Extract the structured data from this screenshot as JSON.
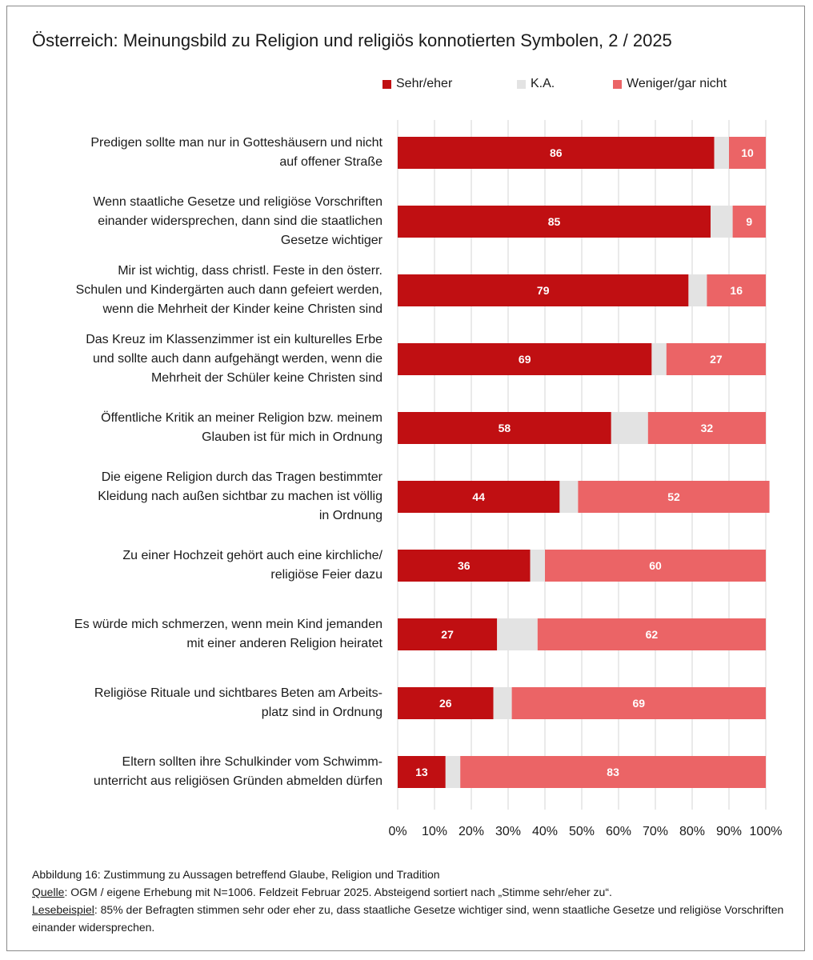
{
  "title": "Österreich: Meinungsbild zu Religion und religiös konnotierten Symbolen, 2 / 2025",
  "colors": {
    "sehr": "#c00f12",
    "ka": "#e3e3e3",
    "weniger": "#eb6466",
    "grid": "#d6d6d6"
  },
  "chart_data": {
    "type": "bar",
    "orientation": "horizontal",
    "stacked": true,
    "xlim": [
      0,
      100
    ],
    "xticks": [
      "0%",
      "10%",
      "20%",
      "30%",
      "40%",
      "50%",
      "60%",
      "70%",
      "80%",
      "90%",
      "100%"
    ],
    "grid": true,
    "legend_position": "top",
    "categories": [
      "Predigen sollte man nur in Gotteshäusern und nicht auf offener Straße",
      "Wenn staatliche Gesetze und religiöse Vorschriften einander widersprechen, dann sind die staatlichen Gesetze wichtiger",
      "Mir ist wichtig, dass christl. Feste in den österr. Schulen und Kindergärten auch dann gefeiert werden, wenn die Mehrheit der Kinder keine Christen sind",
      "Das Kreuz im Klassenzimmer ist ein kulturelles Erbe und sollte auch dann aufgehängt werden, wenn die Mehrheit der Schüler keine Christen sind",
      "Öffentliche Kritik an meiner Religion bzw. meinem Glauben ist für mich in Ordnung",
      "Die eigene Religion durch das Tragen bestimmter Kleidung nach außen sichtbar zu machen ist völlig in Ordnung",
      "Zu einer Hochzeit gehört auch eine kirchliche/ religiöse Feier dazu",
      "Es würde mich schmerzen, wenn mein Kind jemanden mit einer anderen Religion heiratet",
      "Religiöse Rituale und sichtbares Beten am Arbeitsplatz sind in Ordnung",
      "Eltern sollten ihre Schulkinder vom Schwimmunterricht aus religiösen Gründen abmelden dürfen"
    ],
    "category_lines": [
      [
        "Predigen sollte man nur in Gotteshäusern und nicht",
        "auf offener Straße"
      ],
      [
        "Wenn staatliche Gesetze und religiöse Vorschriften",
        "einander widersprechen, dann sind die staatlichen",
        "Gesetze wichtiger"
      ],
      [
        "Mir ist wichtig, dass christl. Feste in den österr.",
        "Schulen und Kindergärten auch dann gefeiert werden,",
        "wenn die Mehrheit der Kinder keine Christen sind"
      ],
      [
        "Das Kreuz im Klassenzimmer ist ein kulturelles Erbe",
        "und sollte auch dann aufgehängt werden, wenn die",
        "Mehrheit der Schüler keine Christen sind"
      ],
      [
        "Öffentliche Kritik an meiner Religion bzw. meinem",
        "Glauben ist für mich in Ordnung"
      ],
      [
        "Die eigene Religion durch das Tragen bestimmter",
        "Kleidung nach außen sichtbar zu machen ist völlig",
        "in Ordnung"
      ],
      [
        "Zu einer Hochzeit gehört auch eine kirchliche/",
        "religiöse Feier dazu"
      ],
      [
        "Es würde mich schmerzen, wenn mein Kind jemanden",
        "mit einer anderen Religion heiratet"
      ],
      [
        "Religiöse Rituale und sichtbares Beten am Arbeits-",
        "platz sind in Ordnung"
      ],
      [
        "Eltern sollten ihre Schulkinder vom Schwimm-",
        "unterricht aus religiösen Gründen abmelden dürfen"
      ]
    ],
    "series": [
      {
        "name": "Sehr/eher",
        "values": [
          86,
          85,
          79,
          69,
          58,
          44,
          36,
          27,
          26,
          13
        ],
        "show_labels": true
      },
      {
        "name": "K.A.",
        "values": [
          4,
          6,
          5,
          4,
          10,
          5,
          4,
          11,
          5,
          4
        ],
        "show_labels": false
      },
      {
        "name": "Weniger/gar nicht",
        "values": [
          10,
          9,
          16,
          27,
          32,
          52,
          60,
          62,
          69,
          83
        ],
        "show_labels": true
      }
    ]
  },
  "footer": {
    "caption": "Abbildung 16: Zustimmung zu Aussagen betreffend Glaube, Religion und Tradition",
    "source_label": "Quelle",
    "source_text": ": OGM / eigene Erhebung mit N=1006. Feldzeit Februar 2025. Absteigend sortiert nach „Stimme sehr/eher zu“.",
    "example_label": "Lesebeispiel",
    "example_text": ": 85% der Befragten stimmen sehr oder eher zu, dass staatliche Gesetze wichtiger sind, wenn staatliche Gesetze und religiöse Vorschriften einander widersprechen."
  }
}
